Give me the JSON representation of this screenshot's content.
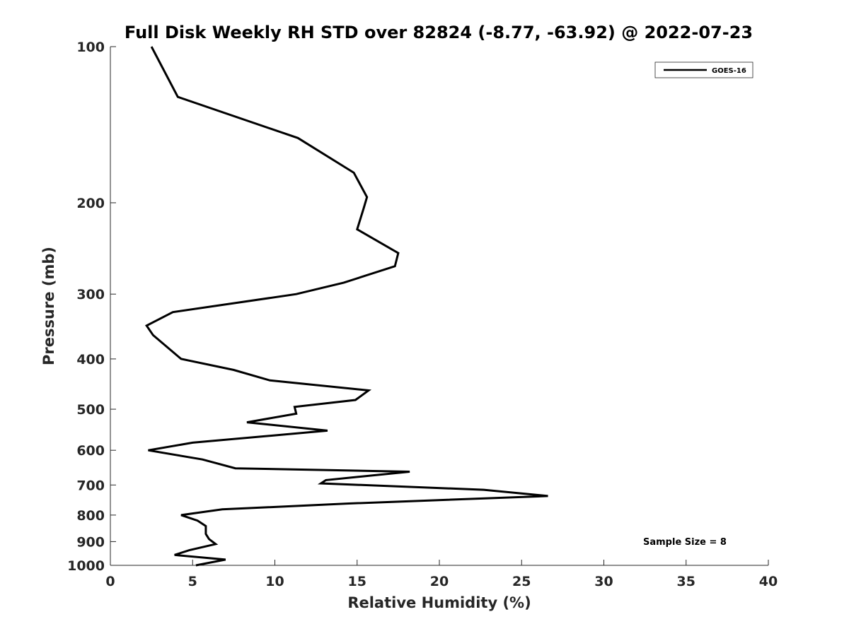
{
  "chart_data": {
    "type": "line",
    "title": "Full Disk Weekly RH STD over 82824 (-8.77, -63.92) @ 2022-07-23",
    "xlabel": "Relative Humidity (%)",
    "ylabel": "Pressure (mb)",
    "xlim": [
      0,
      40
    ],
    "ylim": [
      100,
      1000
    ],
    "yscale": "log",
    "y_reversed": true,
    "x_ticks": [
      "0",
      "5",
      "10",
      "15",
      "20",
      "25",
      "30",
      "35",
      "40"
    ],
    "y_ticks": [
      "100",
      "200",
      "300",
      "400",
      "500",
      "600",
      "700",
      "800",
      "900",
      "1000"
    ],
    "grid": false,
    "legend_position": "top-right",
    "series": [
      {
        "name": "GOES-16",
        "color": "#000000",
        "points": [
          [
            2.5,
            100
          ],
          [
            4.1,
            125
          ],
          [
            11.4,
            150
          ],
          [
            14.8,
            175
          ],
          [
            15.6,
            195
          ],
          [
            15.4,
            205
          ],
          [
            15.0,
            225
          ],
          [
            17.5,
            250
          ],
          [
            17.3,
            265
          ],
          [
            14.2,
            285
          ],
          [
            11.3,
            300
          ],
          [
            3.8,
            325
          ],
          [
            2.2,
            345
          ],
          [
            2.6,
            360
          ],
          [
            4.3,
            400
          ],
          [
            7.5,
            420
          ],
          [
            9.7,
            440
          ],
          [
            15.7,
            460
          ],
          [
            14.9,
            480
          ],
          [
            11.2,
            495
          ],
          [
            11.3,
            510
          ],
          [
            8.3,
            530
          ],
          [
            13.2,
            550
          ],
          [
            5.0,
            580
          ],
          [
            2.3,
            600
          ],
          [
            5.6,
            625
          ],
          [
            7.6,
            650
          ],
          [
            18.2,
            660
          ],
          [
            13.1,
            685
          ],
          [
            12.8,
            695
          ],
          [
            22.7,
            715
          ],
          [
            26.6,
            735
          ],
          [
            14.5,
            760
          ],
          [
            6.8,
            780
          ],
          [
            4.3,
            800
          ],
          [
            5.3,
            820
          ],
          [
            5.8,
            840
          ],
          [
            5.8,
            870
          ],
          [
            6.0,
            890
          ],
          [
            6.4,
            910
          ],
          [
            4.8,
            935
          ],
          [
            3.9,
            955
          ],
          [
            7.0,
            975
          ],
          [
            5.2,
            1000
          ]
        ]
      }
    ],
    "annotation": "Sample Size = 8"
  }
}
